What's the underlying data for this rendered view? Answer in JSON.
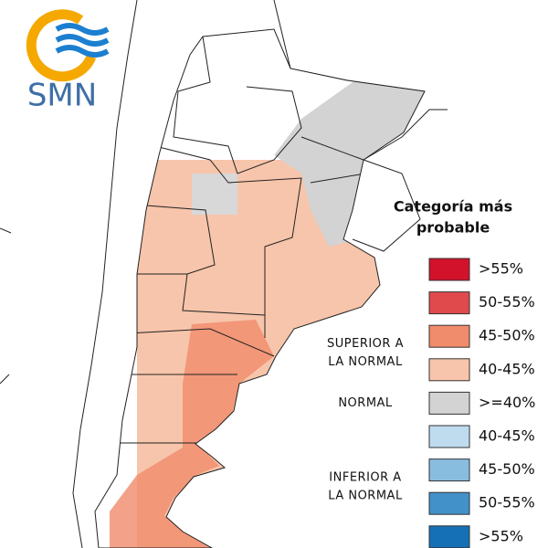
{
  "logo": {
    "text": "SMN"
  },
  "legend": {
    "title": [
      "Categoría más",
      "probable"
    ],
    "groups": [
      {
        "lines": [
          "SUPERIOR A",
          "LA NORMAL"
        ]
      },
      {
        "lines": [
          "NORMAL"
        ]
      },
      {
        "lines": [
          "INFERIOR A",
          "LA NORMAL"
        ]
      }
    ],
    "items": [
      {
        "label": ">55%",
        "color": "#d1122a"
      },
      {
        "label": "50-55%",
        "color": "#e04a4c"
      },
      {
        "label": "45-50%",
        "color": "#f08b6c"
      },
      {
        "label": "40-45%",
        "color": "#f7c5ab"
      },
      {
        "label": ">=40%",
        "color": "#d3d3d3"
      },
      {
        "label": "40-45%",
        "color": "#bfdcef"
      },
      {
        "label": "45-50%",
        "color": "#89bde0"
      },
      {
        "label": "50-55%",
        "color": "#4291c9"
      },
      {
        "label": ">55%",
        "color": "#1670b6"
      }
    ]
  }
}
